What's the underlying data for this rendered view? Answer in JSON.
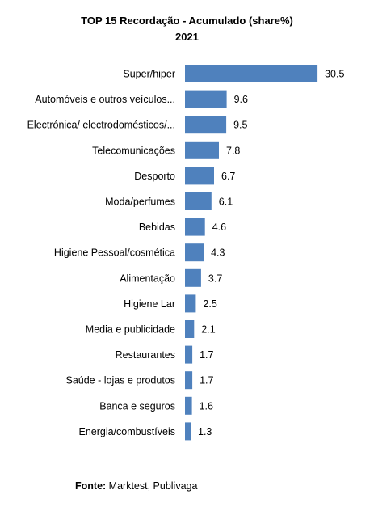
{
  "chart_data": {
    "type": "bar",
    "orientation": "horizontal",
    "title": "TOP 15 Recordação - Acumulado (share%)",
    "subtitle": "2021",
    "xlabel": "",
    "ylabel": "",
    "grid": false,
    "bar_color": "#4f81bd",
    "categories": [
      "Super/hiper",
      "Automóveis e outros veículos...",
      "Electrónica/ electrodomésticos/...",
      "Telecomunicações",
      "Desporto",
      "Moda/perfumes",
      "Bebidas",
      "Higiene Pessoal/cosmética",
      "Alimentação",
      "Higiene Lar",
      "Media e publicidade",
      "Restaurantes",
      "Saúde - lojas e produtos",
      "Banca e seguros",
      "Energia/combustíveis"
    ],
    "values": [
      30.5,
      9.6,
      9.5,
      7.8,
      6.7,
      6.1,
      4.6,
      4.3,
      3.7,
      2.5,
      2.1,
      1.7,
      1.7,
      1.6,
      1.3
    ],
    "value_labels": [
      "30.5",
      "9.6",
      "9.5",
      "7.8",
      "6.7",
      "6.1",
      "4.6",
      "4.3",
      "3.7",
      "2.5",
      "2.1",
      "1.7",
      "1.7",
      "1.6",
      "1.3"
    ]
  },
  "source": {
    "label": "Fonte:",
    "text": " Marktest, Publivaga"
  }
}
